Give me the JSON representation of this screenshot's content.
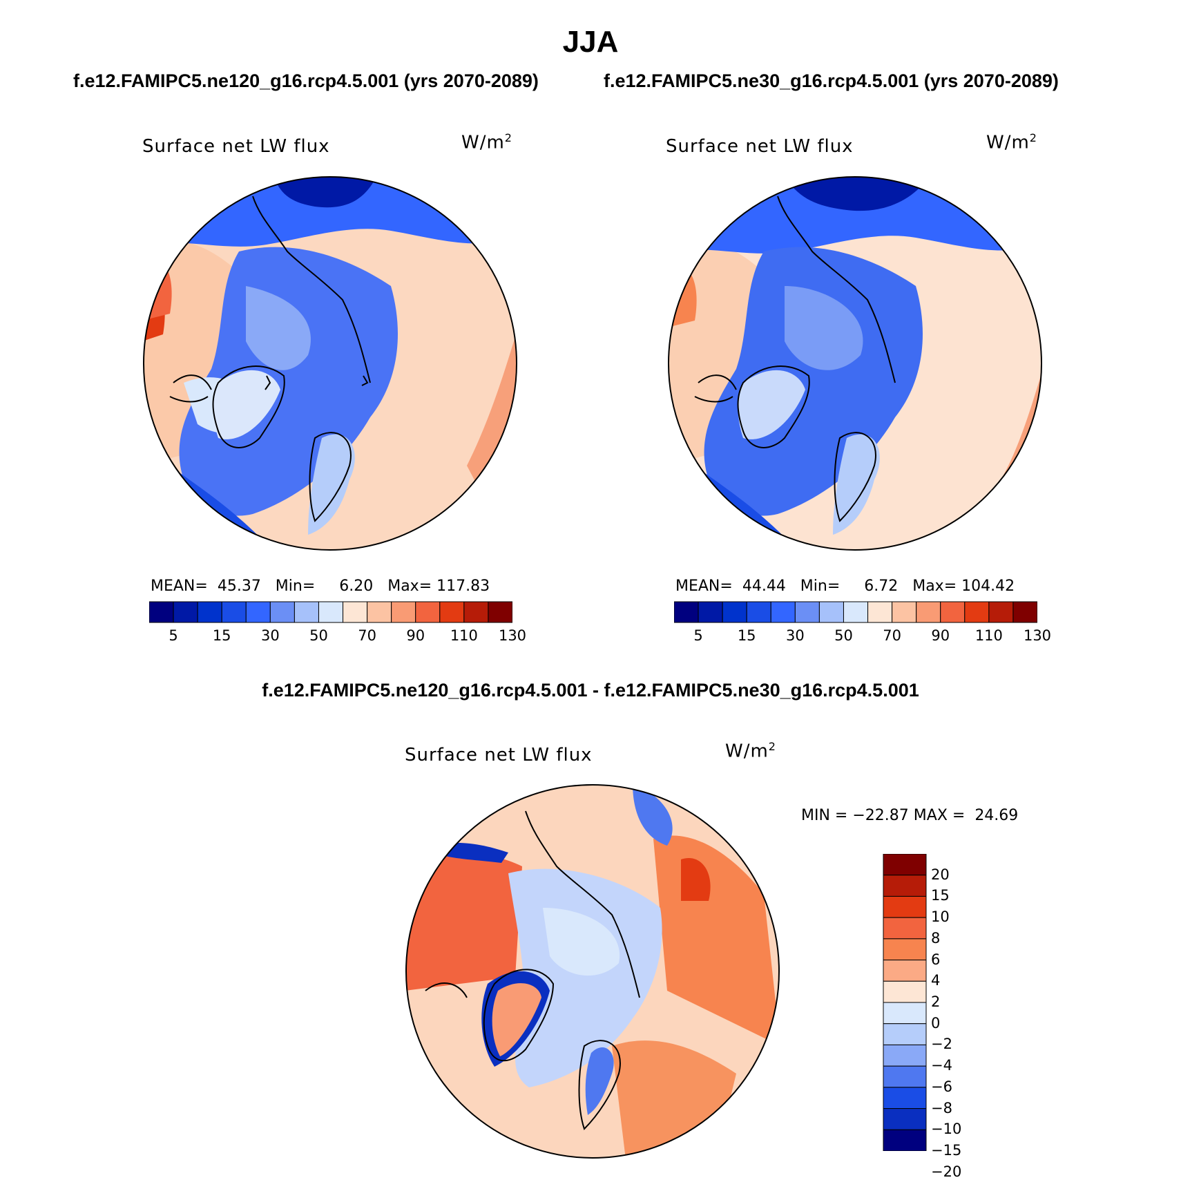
{
  "page": {
    "title": "JJA",
    "subtitle_left": "f.e12.FAMIPC5.ne120_g16.rcp4.5.001 (yrs 2070-2089)",
    "subtitle_right": "f.e12.FAMIPC5.ne30_g16.rcp4.5.001 (yrs 2070-2089)",
    "diff_title": "f.e12.FAMIPC5.ne120_g16.rcp4.5.001 - f.e12.FAMIPC5.ne30_g16.rcp4.5.001"
  },
  "colors": {
    "abs_scale": [
      "#00007f",
      "#0019a6",
      "#0033cc",
      "#1a4de6",
      "#3366ff",
      "#6b8ff5",
      "#a6c1fa",
      "#d9e8fc",
      "#fde6d5",
      "#fcc3a3",
      "#f99b74",
      "#f2643f",
      "#e33b12",
      "#b61c08",
      "#7f0000"
    ],
    "diff_scale": [
      "#7f0000",
      "#b61c08",
      "#e33b12",
      "#f2643f",
      "#f7844f",
      "#fbaa85",
      "#fde6d5",
      "#d9e8fc",
      "#b5cdfa",
      "#8aa9f7",
      "#4f78f0",
      "#1a4de6",
      "#0a2fc0",
      "#00007f"
    ]
  },
  "chart_data": [
    {
      "type": "heatmap",
      "projection": "polar stereographic (north)",
      "title": "Surface net LW flux",
      "units_label": "W/m",
      "units_exp": "2",
      "stats": {
        "mean_label": "MEAN=",
        "mean": "45.37",
        "min_label": "Min=",
        "min": "6.20",
        "max_label": "Max=",
        "max": "117.83"
      },
      "colorbar": {
        "orientation": "horizontal",
        "levels": [
          0,
          5,
          10,
          15,
          20,
          30,
          40,
          50,
          60,
          70,
          80,
          90,
          100,
          110,
          130
        ],
        "tick_labels": [
          "5",
          "15",
          "30",
          "50",
          "70",
          "90",
          "110",
          "130"
        ]
      }
    },
    {
      "type": "heatmap",
      "projection": "polar stereographic (north)",
      "title": "Surface net LW flux",
      "units_label": "W/m",
      "units_exp": "2",
      "stats": {
        "mean_label": "MEAN=",
        "mean": "44.44",
        "min_label": "Min=",
        "min": "6.72",
        "max_label": "Max=",
        "max": "104.42"
      },
      "colorbar": {
        "orientation": "horizontal",
        "levels": [
          0,
          5,
          10,
          15,
          20,
          30,
          40,
          50,
          60,
          70,
          80,
          90,
          100,
          110,
          130
        ],
        "tick_labels": [
          "5",
          "15",
          "30",
          "50",
          "70",
          "90",
          "110",
          "130"
        ]
      }
    },
    {
      "type": "heatmap",
      "projection": "polar stereographic (north)",
      "title": "Surface net LW flux",
      "units_label": "W/m",
      "units_exp": "2",
      "stats": {
        "min_label": "MIN =",
        "min": "−22.87",
        "max_label": "MAX =",
        "max": "24.69"
      },
      "colorbar": {
        "orientation": "vertical",
        "tick_labels": [
          "20",
          "15",
          "10",
          "8",
          "6",
          "4",
          "2",
          "0",
          "−2",
          "−4",
          "−6",
          "−8",
          "−10",
          "−15",
          "−20"
        ]
      }
    }
  ]
}
